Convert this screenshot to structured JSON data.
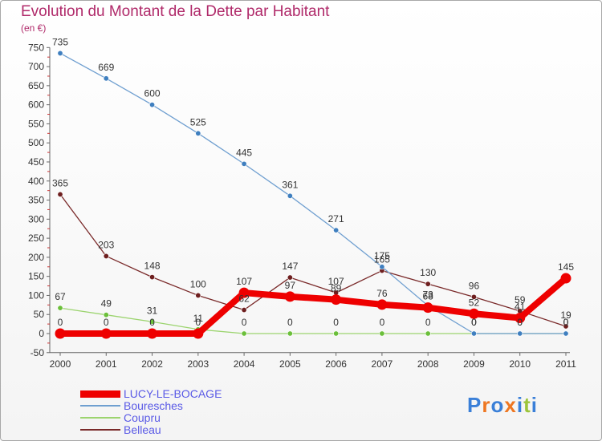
{
  "title": "Evolution du Montant de la Dette par Habitant",
  "unit_label": "(en €)",
  "logo_text": "Proxiti",
  "chart_data": {
    "type": "line",
    "x": [
      "2000",
      "2001",
      "2002",
      "2003",
      "2004",
      "2005",
      "2006",
      "2007",
      "2008",
      "2009",
      "2010",
      "2011"
    ],
    "ylim": [
      -50,
      750
    ],
    "yticks": [
      -50,
      0,
      50,
      100,
      150,
      200,
      250,
      300,
      350,
      400,
      450,
      500,
      550,
      600,
      650,
      700,
      750
    ],
    "grid": false,
    "legend_position": "bottom-left",
    "series": [
      {
        "name": "LUCY-LE-BOCAGE",
        "color": "#ee0000",
        "values": [
          0,
          0,
          0,
          0,
          107,
          97,
          89,
          76,
          68,
          52,
          41,
          145
        ]
      },
      {
        "name": "Bouresches",
        "color": "#6f9fd0",
        "values": [
          735,
          669,
          600,
          525,
          445,
          361,
          271,
          175,
          73,
          0,
          0,
          0
        ]
      },
      {
        "name": "Coupru",
        "color": "#9cd46f",
        "values": [
          67,
          49,
          31,
          11,
          0,
          0,
          0,
          0,
          0,
          0,
          0,
          0
        ]
      },
      {
        "name": "Belleau",
        "color": "#7a2a2a",
        "values": [
          365,
          203,
          148,
          100,
          62,
          147,
          107,
          165,
          130,
          96,
          59,
          19
        ]
      }
    ],
    "data_labels": [
      {
        "series": "LUCY-LE-BOCAGE",
        "labels": [
          "0",
          "0",
          "0",
          "0",
          "107",
          "97",
          "89",
          "76",
          "68",
          "52",
          "41",
          "145"
        ]
      },
      {
        "series": "Bouresches",
        "labels": [
          "735",
          "669",
          "600",
          "525",
          "445",
          "361",
          "271",
          "175",
          "73",
          "0",
          "0",
          "0"
        ]
      },
      {
        "series": "Coupru",
        "labels": [
          "67",
          "49",
          "31",
          "11",
          "0",
          "0",
          "0",
          "0",
          "0",
          "0",
          "0",
          "0"
        ]
      },
      {
        "series": "Belleau",
        "labels": [
          "365",
          "203",
          "148",
          "100",
          "62",
          "147",
          "107",
          "165",
          "130",
          "96",
          "59",
          "19"
        ]
      }
    ]
  }
}
